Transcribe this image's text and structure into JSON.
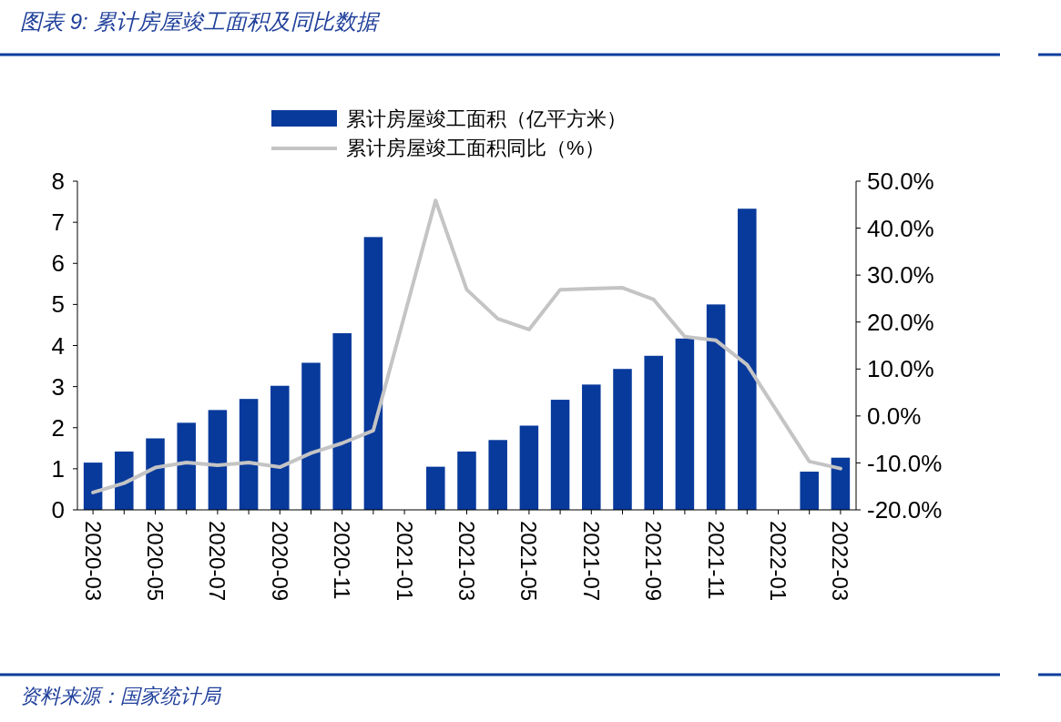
{
  "chart_data": {
    "type": "bar",
    "title": "图表 9:  累计房屋竣工面积及同比数据",
    "categories": [
      "2020-03",
      null,
      "2020-05",
      null,
      "2020-07",
      null,
      "2020-09",
      null,
      "2020-11",
      null,
      "2021-01",
      null,
      "2021-03",
      null,
      "2021-05",
      null,
      "2021-07",
      null,
      "2021-09",
      null,
      "2021-11",
      null,
      "2022-01",
      null,
      "2022-03"
    ],
    "series": [
      {
        "name": "累计房屋竣工面积（亿平方米）",
        "color": "#083a9c",
        "values": [
          1.15,
          1.42,
          1.74,
          2.12,
          2.43,
          2.7,
          3.02,
          3.58,
          4.3,
          6.64,
          null,
          1.05,
          1.42,
          1.7,
          2.05,
          2.68,
          3.05,
          3.43,
          3.75,
          4.17,
          5.0,
          7.33,
          null,
          0.93,
          1.27
        ]
      },
      {
        "name": "累计房屋竣工面积同比（%）",
        "type": "line",
        "axis": "y2",
        "color": "#c4c4c4",
        "values": [
          -16.3,
          -14.3,
          -11,
          -9.9,
          -10.5,
          -9.9,
          -10.9,
          -7.9,
          -5.8,
          -3.1,
          null,
          45.9,
          26.9,
          20.7,
          18.4,
          26.9,
          27.1,
          27.3,
          24.8,
          16.9,
          16.1,
          10.9,
          null,
          -9.7,
          -11.2
        ]
      }
    ],
    "ylim": [
      0,
      8
    ],
    "yticks": [
      0,
      1,
      2,
      3,
      4,
      5,
      6,
      7,
      8
    ],
    "y2lim": [
      -20,
      50
    ],
    "y2ticks": [
      {
        "value": -20,
        "label": "-20.0%"
      },
      {
        "value": -10,
        "label": "-10.0%"
      },
      {
        "value": 0,
        "label": "0.0%"
      },
      {
        "value": 10,
        "label": "10.0%"
      },
      {
        "value": 20,
        "label": "20.0%"
      },
      {
        "value": 30,
        "label": "30.0%"
      },
      {
        "value": 40,
        "label": "40.0%"
      },
      {
        "value": 50,
        "label": "50.0%"
      }
    ],
    "grid": false,
    "legend": "top",
    "annotations": [
      "资料来源：国家统计局"
    ]
  }
}
